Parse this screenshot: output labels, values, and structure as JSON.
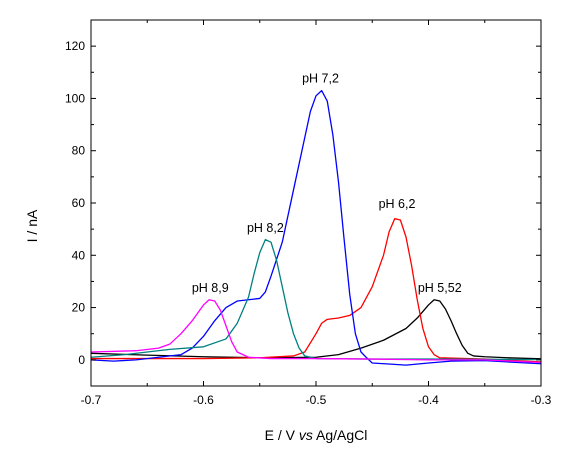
{
  "chart_data": {
    "type": "line",
    "xlabel_parts": [
      "E / V ",
      "vs",
      " Ag/AgCl"
    ],
    "ylabel": "I / nA",
    "xlim": [
      -0.7,
      -0.3
    ],
    "ylim": [
      -10,
      130
    ],
    "xticks": [
      -0.7,
      -0.6,
      -0.5,
      -0.4,
      -0.3
    ],
    "xtick_labels": [
      "-0.7",
      "-0.6",
      "-0.5",
      "-0.4",
      "-0.3"
    ],
    "yticks": [
      0,
      20,
      40,
      60,
      80,
      100,
      120
    ],
    "ytick_labels": [
      "0",
      "20",
      "40",
      "60",
      "80",
      "100",
      "120"
    ],
    "grid": false,
    "series": [
      {
        "color": "#000000",
        "points": [
          [
            -0.7,
            2.5
          ],
          [
            -0.65,
            1.8
          ],
          [
            -0.6,
            1.2
          ],
          [
            -0.55,
            0.8
          ],
          [
            -0.5,
            1.0
          ],
          [
            -0.48,
            2.0
          ],
          [
            -0.46,
            4.5
          ],
          [
            -0.44,
            7.5
          ],
          [
            -0.42,
            12
          ],
          [
            -0.41,
            16
          ],
          [
            -0.4,
            21
          ],
          [
            -0.395,
            23
          ],
          [
            -0.39,
            22.5
          ],
          [
            -0.385,
            19.5
          ],
          [
            -0.38,
            15
          ],
          [
            -0.375,
            10
          ],
          [
            -0.37,
            5.5
          ],
          [
            -0.365,
            2.5
          ],
          [
            -0.36,
            1.5
          ],
          [
            -0.35,
            1.2
          ],
          [
            -0.33,
            0.8
          ],
          [
            -0.3,
            0.4
          ]
        ]
      },
      {
        "color": "#ff0000",
        "points": [
          [
            -0.7,
            0.5
          ],
          [
            -0.65,
            0.5
          ],
          [
            -0.6,
            0.5
          ],
          [
            -0.55,
            0.8
          ],
          [
            -0.52,
            1.5
          ],
          [
            -0.51,
            3
          ],
          [
            -0.5,
            10
          ],
          [
            -0.495,
            14
          ],
          [
            -0.49,
            15.5
          ],
          [
            -0.48,
            16
          ],
          [
            -0.47,
            17
          ],
          [
            -0.46,
            20
          ],
          [
            -0.45,
            28
          ],
          [
            -0.44,
            40
          ],
          [
            -0.435,
            49
          ],
          [
            -0.43,
            54
          ],
          [
            -0.425,
            53.5
          ],
          [
            -0.42,
            47
          ],
          [
            -0.415,
            36
          ],
          [
            -0.41,
            23
          ],
          [
            -0.405,
            12
          ],
          [
            -0.4,
            5
          ],
          [
            -0.395,
            2
          ],
          [
            -0.39,
            0.8
          ],
          [
            -0.35,
            0.3
          ],
          [
            -0.3,
            -0.8
          ]
        ]
      },
      {
        "color": "#0000ff",
        "points": [
          [
            -0.7,
            0.0
          ],
          [
            -0.68,
            -0.5
          ],
          [
            -0.66,
            0.0
          ],
          [
            -0.64,
            1.0
          ],
          [
            -0.62,
            2.0
          ],
          [
            -0.61,
            4.5
          ],
          [
            -0.6,
            9
          ],
          [
            -0.59,
            15
          ],
          [
            -0.58,
            20
          ],
          [
            -0.57,
            22.5
          ],
          [
            -0.56,
            23
          ],
          [
            -0.55,
            23.5
          ],
          [
            -0.545,
            26
          ],
          [
            -0.54,
            32
          ],
          [
            -0.53,
            45
          ],
          [
            -0.52,
            65
          ],
          [
            -0.51,
            85
          ],
          [
            -0.505,
            95
          ],
          [
            -0.5,
            101
          ],
          [
            -0.495,
            103
          ],
          [
            -0.49,
            99
          ],
          [
            -0.485,
            86
          ],
          [
            -0.48,
            68
          ],
          [
            -0.475,
            46
          ],
          [
            -0.47,
            25
          ],
          [
            -0.465,
            10
          ],
          [
            -0.46,
            3
          ],
          [
            -0.455,
            0.8
          ],
          [
            -0.45,
            -1.2
          ],
          [
            -0.42,
            -2
          ],
          [
            -0.4,
            -1.2
          ],
          [
            -0.38,
            -0.5
          ],
          [
            -0.35,
            -0.3
          ],
          [
            -0.3,
            -1.5
          ]
        ]
      },
      {
        "color": "#008080",
        "points": [
          [
            -0.7,
            1.0
          ],
          [
            -0.67,
            2.0
          ],
          [
            -0.65,
            3.0
          ],
          [
            -0.63,
            4.0
          ],
          [
            -0.6,
            5.0
          ],
          [
            -0.58,
            8
          ],
          [
            -0.57,
            14
          ],
          [
            -0.56,
            24
          ],
          [
            -0.555,
            33
          ],
          [
            -0.55,
            41
          ],
          [
            -0.545,
            46
          ],
          [
            -0.54,
            45
          ],
          [
            -0.535,
            38
          ],
          [
            -0.53,
            28
          ],
          [
            -0.525,
            18
          ],
          [
            -0.52,
            10
          ],
          [
            -0.515,
            4.5
          ],
          [
            -0.51,
            1.5
          ],
          [
            -0.5,
            0.5
          ],
          [
            -0.45,
            0.3
          ],
          [
            -0.4,
            0.3
          ],
          [
            -0.3,
            0.1
          ]
        ]
      },
      {
        "color": "#ff00ff",
        "points": [
          [
            -0.7,
            3.0
          ],
          [
            -0.66,
            3.5
          ],
          [
            -0.64,
            4.5
          ],
          [
            -0.63,
            6
          ],
          [
            -0.62,
            10
          ],
          [
            -0.61,
            15
          ],
          [
            -0.6,
            21
          ],
          [
            -0.595,
            23
          ],
          [
            -0.59,
            22.5
          ],
          [
            -0.585,
            19
          ],
          [
            -0.58,
            13
          ],
          [
            -0.575,
            7
          ],
          [
            -0.57,
            3
          ],
          [
            -0.56,
            1.0
          ],
          [
            -0.54,
            0.5
          ],
          [
            -0.5,
            0.5
          ],
          [
            -0.45,
            0.3
          ],
          [
            -0.4,
            0.0
          ],
          [
            -0.35,
            0.0
          ],
          [
            -0.3,
            -1.0
          ]
        ]
      }
    ],
    "annotations": [
      {
        "text": "pH 7,2",
        "x": -0.496,
        "y": 106
      },
      {
        "text": "pH 6,2",
        "x": -0.428,
        "y": 58
      },
      {
        "text": "pH 8,2",
        "x": -0.545,
        "y": 49
      },
      {
        "text": "pH 8,9",
        "x": -0.594,
        "y": 26
      },
      {
        "text": "pH 5,52",
        "x": -0.39,
        "y": 26
      }
    ]
  }
}
